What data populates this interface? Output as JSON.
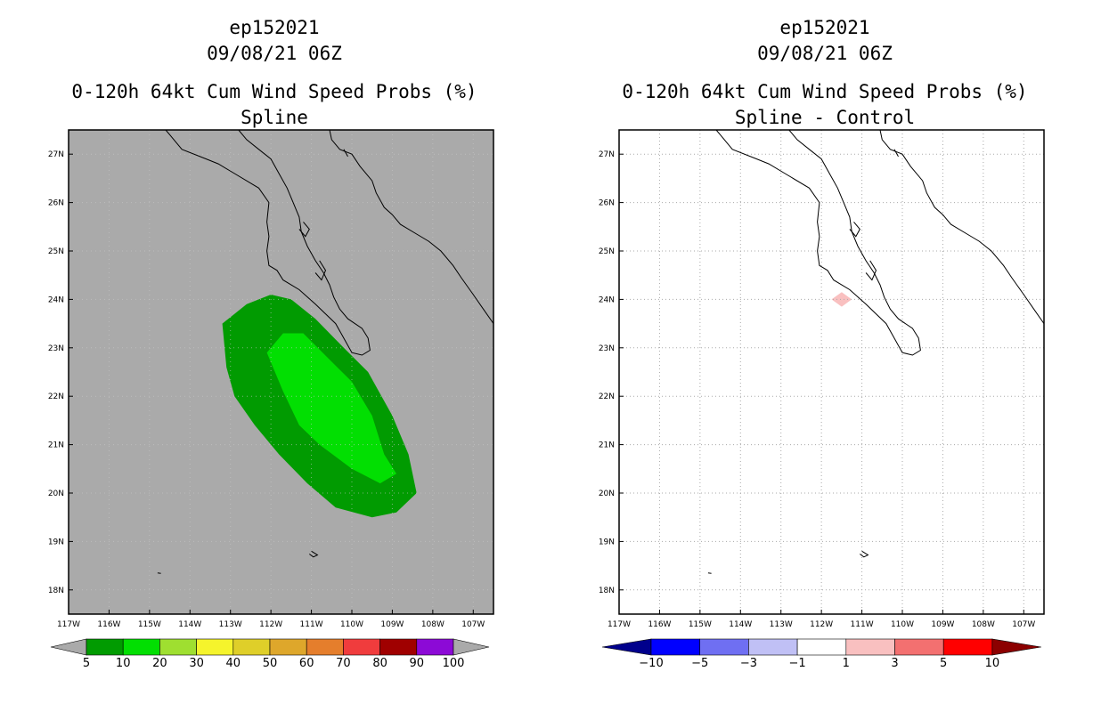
{
  "chart_data": [
    {
      "type": "filled-contour-map",
      "storm": "ep152021",
      "datetime": "09/08/21 06Z",
      "title": "0-120h 64kt Cum Wind Speed Probs (%)",
      "subtitle": "Spline",
      "x_ticks": [
        "117W",
        "116W",
        "115W",
        "114W",
        "113W",
        "112W",
        "111W",
        "110W",
        "109W",
        "108W",
        "107W"
      ],
      "y_ticks": [
        "18N",
        "19N",
        "20N",
        "21N",
        "22N",
        "23N",
        "24N",
        "25N",
        "26N",
        "27N"
      ],
      "xlim_lon": [
        -117,
        -106.5
      ],
      "ylim_lat": [
        17.5,
        27.5
      ],
      "background_color": "#aaaaaa",
      "contours": [
        {
          "level": "5-10",
          "color": "#019b01",
          "polygon_lonlat": [
            [
              -113.2,
              23.5
            ],
            [
              -112.6,
              23.9
            ],
            [
              -112.0,
              24.1
            ],
            [
              -111.5,
              24.0
            ],
            [
              -110.9,
              23.6
            ],
            [
              -110.2,
              23.0
            ],
            [
              -109.6,
              22.5
            ],
            [
              -109.0,
              21.6
            ],
            [
              -108.6,
              20.8
            ],
            [
              -108.4,
              20.0
            ],
            [
              -108.9,
              19.6
            ],
            [
              -109.5,
              19.5
            ],
            [
              -110.4,
              19.7
            ],
            [
              -111.1,
              20.2
            ],
            [
              -111.8,
              20.8
            ],
            [
              -112.4,
              21.4
            ],
            [
              -112.9,
              22.0
            ],
            [
              -113.1,
              22.6
            ]
          ]
        },
        {
          "level": "10-20",
          "color": "#02df02",
          "polygon_lonlat": [
            [
              -112.1,
              22.9
            ],
            [
              -111.7,
              23.3
            ],
            [
              -111.2,
              23.3
            ],
            [
              -110.6,
              22.8
            ],
            [
              -110.0,
              22.3
            ],
            [
              -109.5,
              21.6
            ],
            [
              -109.2,
              20.8
            ],
            [
              -108.9,
              20.4
            ],
            [
              -109.3,
              20.2
            ],
            [
              -110.0,
              20.5
            ],
            [
              -110.8,
              21.0
            ],
            [
              -111.3,
              21.4
            ],
            [
              -111.7,
              22.1
            ]
          ]
        }
      ],
      "colorbar": {
        "labels": [
          "5",
          "10",
          "20",
          "30",
          "40",
          "50",
          "60",
          "70",
          "80",
          "90",
          "100"
        ],
        "colors": [
          "#019b01",
          "#02df02",
          "#9fdf30",
          "#f5f42c",
          "#dfcf29",
          "#dea72b",
          "#e57e2c",
          "#f03c3d",
          "#a00000",
          "#8c0ad6"
        ]
      }
    },
    {
      "type": "filled-contour-map",
      "storm": "ep152021",
      "datetime": "09/08/21 06Z",
      "title": "0-120h 64kt Cum Wind Speed Probs (%)",
      "subtitle": "Spline - Control",
      "x_ticks": [
        "117W",
        "116W",
        "115W",
        "114W",
        "113W",
        "112W",
        "111W",
        "110W",
        "109W",
        "108W",
        "107W"
      ],
      "y_ticks": [
        "18N",
        "19N",
        "20N",
        "21N",
        "22N",
        "23N",
        "24N",
        "25N",
        "26N",
        "27N"
      ],
      "xlim_lon": [
        -117,
        -106.5
      ],
      "ylim_lat": [
        17.5,
        27.5
      ],
      "background_color": "#ffffff",
      "grid": "dotted",
      "contours": [
        {
          "level": "1-3",
          "color": "#f9c0c0",
          "polygon_lonlat": [
            [
              -111.75,
              24.0
            ],
            [
              -111.5,
              24.15
            ],
            [
              -111.25,
              24.0
            ],
            [
              -111.5,
              23.85
            ]
          ]
        }
      ],
      "colorbar": {
        "labels": [
          "−10",
          "−5",
          "−3",
          "−1",
          "1",
          "3",
          "5",
          "10"
        ],
        "colors": [
          "#00008c",
          "#0000ff",
          "#6f6ff2",
          "#c0c0f5",
          "#ffffff",
          "#f9c0c0",
          "#f37070",
          "#ff0000",
          "#8c0000"
        ]
      }
    }
  ]
}
